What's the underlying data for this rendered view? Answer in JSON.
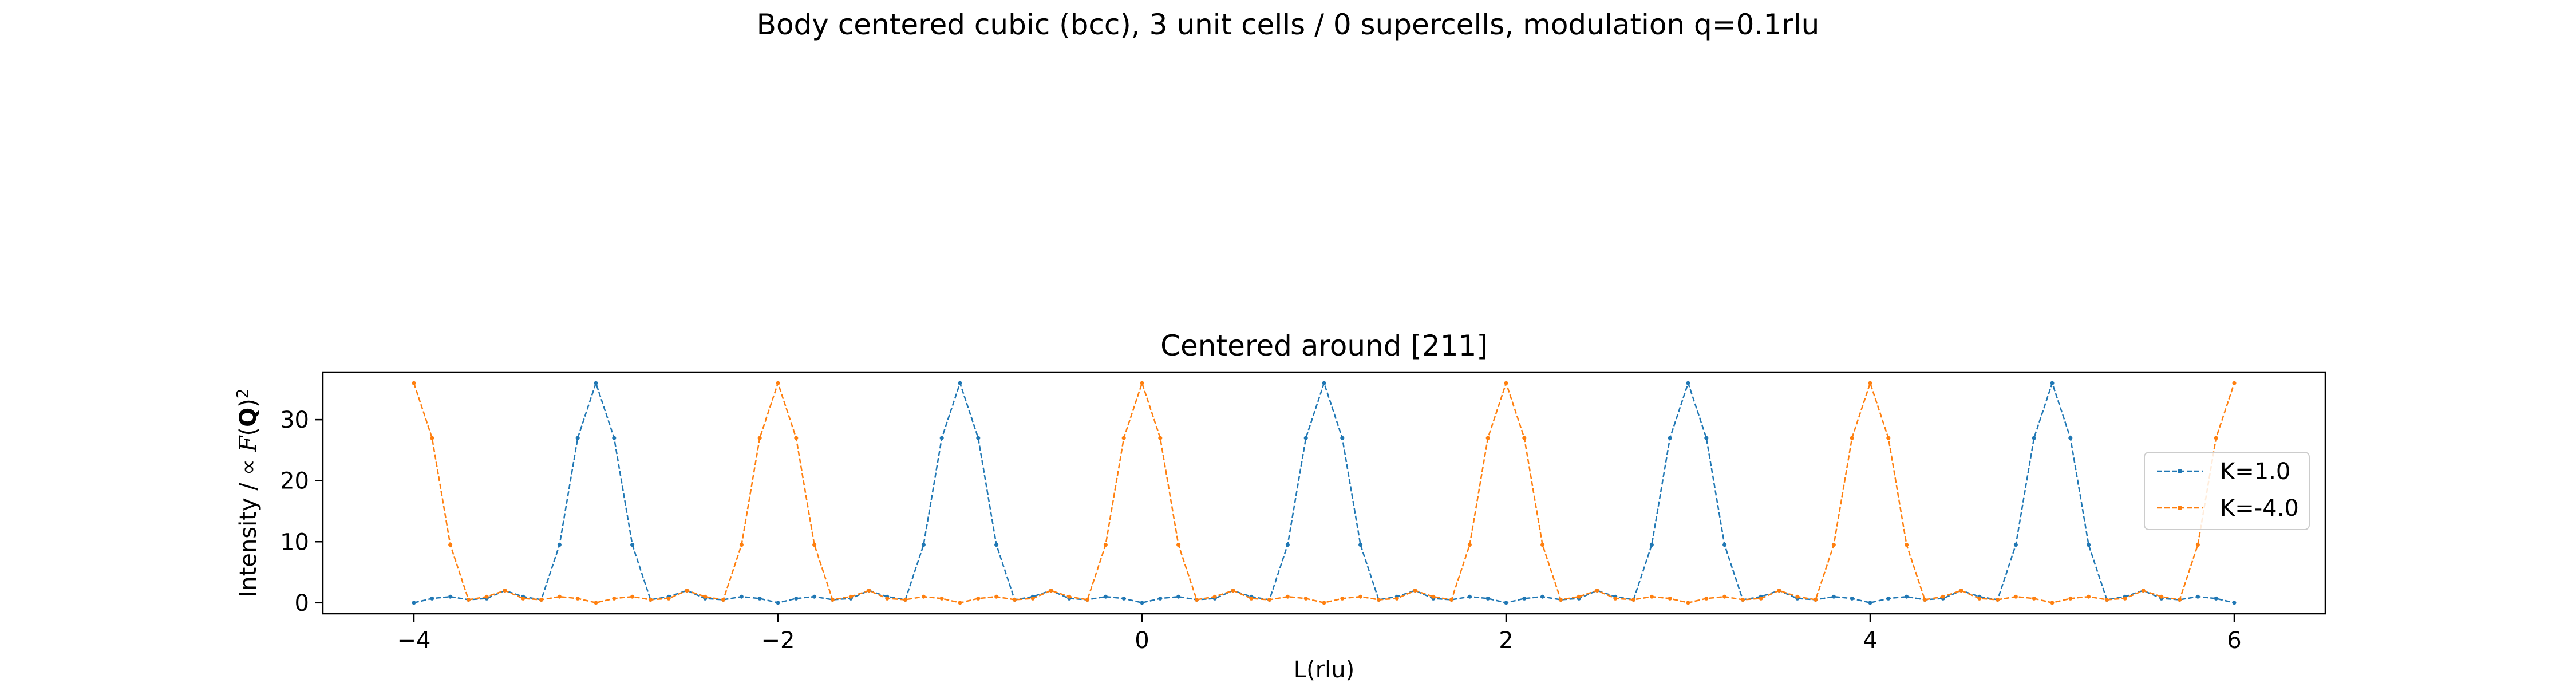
{
  "figure": {
    "suptitle": "Body centered cubic (bcc), 3 unit cells / 0 supercells, modulation q=0.1rlu"
  },
  "chart_data": {
    "type": "line",
    "title": "Centered around [211]",
    "xlabel": "L(rlu)",
    "ylabel": {
      "prefix": "Intensity / ∝ ",
      "F": "F",
      "Q": "Q",
      "exponent": "2"
    },
    "xlim": [
      -4.5,
      6.5
    ],
    "ylim": [
      -1.8,
      37.8
    ],
    "xticks": [
      -4,
      -2,
      0,
      2,
      4,
      6
    ],
    "xtick_labels": [
      "−4",
      "−2",
      "0",
      "2",
      "4",
      "6"
    ],
    "yticks": [
      0,
      10,
      20,
      30
    ],
    "ytick_labels": [
      "0",
      "10",
      "20",
      "30"
    ],
    "grid": false,
    "legend_position": "center-right",
    "x_start": -4,
    "x_step": 0.1,
    "series": [
      {
        "name": "K=1.0",
        "color": "#1f77b4",
        "linestyle": "dashed",
        "marker": "dot",
        "y": [
          0,
          0.7,
          1,
          0.5,
          0.7,
          2,
          1,
          0.5,
          9.5,
          27,
          36,
          27,
          9.5,
          0.5,
          1,
          2,
          0.7,
          0.5,
          1,
          0.7,
          0,
          0.7,
          1,
          0.5,
          0.7,
          2,
          1,
          0.5,
          9.5,
          27,
          36,
          27,
          9.5,
          0.5,
          1,
          2,
          0.7,
          0.5,
          1,
          0.7,
          0,
          0.7,
          1,
          0.5,
          0.7,
          2,
          1,
          0.5,
          9.5,
          27,
          36,
          27,
          9.5,
          0.5,
          1,
          2,
          0.7,
          0.5,
          1,
          0.7,
          0,
          0.7,
          1,
          0.5,
          0.7,
          2,
          1,
          0.5,
          9.5,
          27,
          36,
          27,
          9.5,
          0.5,
          1,
          2,
          0.7,
          0.5,
          1,
          0.7,
          0,
          0.7,
          1,
          0.5,
          0.7,
          2,
          1,
          0.5,
          9.5,
          27,
          36,
          27,
          9.5,
          0.5,
          1,
          2,
          0.7,
          0.5,
          1,
          0.7,
          0
        ]
      },
      {
        "name": "K=-4.0",
        "color": "#ff7f0e",
        "linestyle": "dashed",
        "marker": "dot",
        "y": [
          36,
          27,
          9.5,
          0.5,
          1,
          2,
          0.7,
          0.5,
          1,
          0.7,
          0,
          0.7,
          1,
          0.5,
          0.7,
          2,
          1,
          0.5,
          9.5,
          27,
          36,
          27,
          9.5,
          0.5,
          1,
          2,
          0.7,
          0.5,
          1,
          0.7,
          0,
          0.7,
          1,
          0.5,
          0.7,
          2,
          1,
          0.5,
          9.5,
          27,
          36,
          27,
          9.5,
          0.5,
          1,
          2,
          0.7,
          0.5,
          1,
          0.7,
          0,
          0.7,
          1,
          0.5,
          0.7,
          2,
          1,
          0.5,
          9.5,
          27,
          36,
          27,
          9.5,
          0.5,
          1,
          2,
          0.7,
          0.5,
          1,
          0.7,
          0,
          0.7,
          1,
          0.5,
          0.7,
          2,
          1,
          0.5,
          9.5,
          27,
          36,
          27,
          9.5,
          0.5,
          1,
          2,
          0.7,
          0.5,
          1,
          0.7,
          0,
          0.7,
          1,
          0.5,
          0.7,
          2,
          1,
          0.5,
          9.5,
          27,
          36
        ]
      }
    ]
  }
}
